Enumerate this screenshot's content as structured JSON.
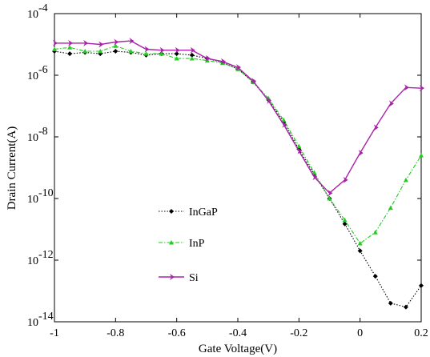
{
  "chart_data": {
    "type": "line",
    "title": "",
    "xlabel": "Gate Voltage(V)",
    "ylabel": "Drain Current(A)",
    "xlim": [
      -1,
      0.2
    ],
    "ylim": [
      1e-14,
      0.0001
    ],
    "yscale": "log",
    "grid": false,
    "legend_position": "lower-left inside plot",
    "x_ticks": [
      -1,
      -0.8,
      -0.6,
      -0.4,
      -0.2,
      0,
      0.2
    ],
    "x_tick_labels": [
      "-1",
      "-0.8",
      "-0.6",
      "-0.4",
      "-0.2",
      "0",
      "0.2"
    ],
    "y_ticks": [
      1e-14,
      1e-12,
      1e-10,
      1e-08,
      1e-06,
      0.0001
    ],
    "y_tick_labels": [
      {
        "base": "10",
        "exp": "-14"
      },
      {
        "base": "10",
        "exp": "-12"
      },
      {
        "base": "10",
        "exp": "-10"
      },
      {
        "base": "10",
        "exp": "-8"
      },
      {
        "base": "10",
        "exp": "-6"
      },
      {
        "base": "10",
        "exp": "-4"
      }
    ],
    "series": [
      {
        "name": "InGaP",
        "color": "#000000",
        "line_style": "dotted",
        "marker": "diamond",
        "x": [
          -1,
          -0.95,
          -0.9,
          -0.85,
          -0.8,
          -0.75,
          -0.7,
          -0.65,
          -0.6,
          -0.55,
          -0.5,
          -0.45,
          -0.4,
          -0.35,
          -0.3,
          -0.25,
          -0.2,
          -0.15,
          -0.1,
          -0.05,
          0,
          0.05,
          0.1,
          0.15,
          0.2
        ],
        "y": [
          6e-06,
          5e-06,
          5.5e-06,
          5e-06,
          6e-06,
          5.5e-06,
          4.5e-06,
          5e-06,
          5e-06,
          4.5e-06,
          3.5e-06,
          2.6e-06,
          1.6e-06,
          6e-07,
          1.6e-07,
          3e-08,
          4e-09,
          6e-10,
          1e-10,
          1.5e-11,
          2e-12,
          3e-13,
          4e-14,
          3e-14,
          1.5e-13
        ]
      },
      {
        "name": "InP",
        "color": "#22cc22",
        "line_style": "dashdot",
        "marker": "triangle",
        "x": [
          -1,
          -0.95,
          -0.9,
          -0.85,
          -0.8,
          -0.75,
          -0.7,
          -0.65,
          -0.6,
          -0.55,
          -0.5,
          -0.45,
          -0.4,
          -0.35,
          -0.3,
          -0.25,
          -0.2,
          -0.15,
          -0.1,
          -0.05,
          0,
          0.05,
          0.1,
          0.15,
          0.2
        ],
        "y": [
          7e-06,
          8e-06,
          6e-06,
          6e-06,
          9e-06,
          6e-06,
          5e-06,
          5e-06,
          3.5e-06,
          3.5e-06,
          3e-06,
          2.5e-06,
          1.6e-06,
          6e-07,
          1.8e-07,
          3.5e-08,
          5e-09,
          7e-10,
          1e-10,
          2e-11,
          3.5e-12,
          8e-12,
          5e-11,
          4e-10,
          2.5e-09
        ]
      },
      {
        "name": "Si",
        "color": "#aa22aa",
        "line_style": "solid",
        "marker": "arrow",
        "x": [
          -1,
          -0.95,
          -0.9,
          -0.85,
          -0.8,
          -0.75,
          -0.7,
          -0.65,
          -0.6,
          -0.55,
          -0.5,
          -0.45,
          -0.4,
          -0.35,
          -0.3,
          -0.25,
          -0.2,
          -0.15,
          -0.1,
          -0.05,
          0,
          0.05,
          0.1,
          0.15,
          0.2
        ],
        "y": [
          1.1e-05,
          1.1e-05,
          1.1e-05,
          1e-05,
          1.2e-05,
          1.3e-05,
          7e-06,
          6.5e-06,
          6.5e-06,
          6.5e-06,
          3.5e-06,
          2.8e-06,
          1.8e-06,
          6.5e-07,
          1.5e-07,
          2.5e-08,
          3.5e-09,
          5e-10,
          1.5e-10,
          4e-10,
          3e-09,
          2e-08,
          1.2e-07,
          4e-07,
          3.8e-07
        ]
      }
    ]
  },
  "legend": {
    "items": [
      {
        "label": "InGaP"
      },
      {
        "label": "InP"
      },
      {
        "label": "Si"
      }
    ]
  }
}
